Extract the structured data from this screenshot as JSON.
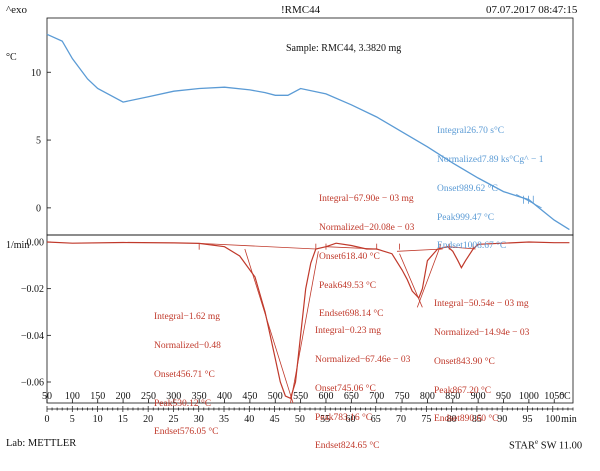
{
  "header": {
    "left": "^exo",
    "center": "!RMC44",
    "right": "07.07.2017 08:47:15"
  },
  "footer": {
    "lab": "Lab: METTLER",
    "software_prefix": "STAR",
    "software_sup": "e",
    "software_suffix": " SW 11.00"
  },
  "colors": {
    "blue": "#5b9bd5",
    "red": "#c0392b",
    "axis": "#111111"
  },
  "chart_data": [
    {
      "type": "line",
      "panel": "top",
      "subtitle": "Sample: RMC44, 3.3820 mg",
      "y_unit": "°C",
      "yticks": [
        "10",
        "5",
        "0"
      ],
      "ylim": [
        -2,
        14
      ],
      "x": [
        50,
        80,
        100,
        130,
        150,
        200,
        250,
        300,
        350,
        400,
        450,
        480,
        500,
        525,
        550,
        600,
        650,
        700,
        750,
        800,
        850,
        900,
        950,
        1000,
        1050,
        1080
      ],
      "y": [
        12.8,
        12.3,
        11.0,
        9.5,
        8.8,
        7.8,
        8.2,
        8.6,
        8.8,
        8.9,
        8.7,
        8.5,
        8.3,
        8.3,
        8.8,
        8.4,
        7.6,
        6.7,
        5.6,
        4.5,
        3.3,
        2.2,
        1.2,
        0.6,
        -0.9,
        -1.6
      ],
      "annotation": {
        "integral": "26.70 s°C",
        "normalized": "7.89 ks°Cg^ − 1",
        "onset": "989.62 °C",
        "peak": "999.47 °C",
        "endset": "1008.67 °C"
      }
    },
    {
      "type": "line",
      "panel": "bottom",
      "y_unit": "1/min",
      "yticks": [
        "0.00",
        "−0.02",
        "−0.04",
        "−0.06"
      ],
      "ylim": [
        -0.069,
        0.003
      ],
      "x": [
        50,
        100,
        200,
        300,
        350,
        400,
        430,
        460,
        480,
        500,
        510,
        520,
        530,
        540,
        550,
        560,
        570,
        580,
        600,
        620,
        650,
        680,
        700,
        730,
        750,
        760,
        770,
        783,
        790,
        800,
        820,
        840,
        850,
        860,
        867,
        875,
        890,
        900,
        950,
        1000,
        1050,
        1080
      ],
      "y": [
        0.0,
        -0.0005,
        -0.0002,
        -0.0004,
        -0.0006,
        -0.002,
        -0.006,
        -0.015,
        -0.03,
        -0.05,
        -0.06,
        -0.066,
        -0.067,
        -0.06,
        -0.04,
        -0.02,
        -0.009,
        -0.003,
        -0.002,
        -0.0005,
        -0.0015,
        -0.003,
        -0.003,
        -0.005,
        -0.012,
        -0.016,
        -0.021,
        -0.024,
        -0.02,
        -0.008,
        -0.003,
        -0.002,
        -0.004,
        -0.008,
        -0.011,
        -0.008,
        -0.003,
        -0.001,
        -0.0005,
        0.0,
        -0.0003,
        -0.0003
      ],
      "annotations": [
        {
          "integral": "−1.62 mg",
          "normalized": "−0.48",
          "onset": "456.71 °C",
          "peak": "530.12 °C",
          "endset": "576.05 °C"
        },
        {
          "integral": "−67.90e − 03 mg",
          "normalized": "−20.08e − 03",
          "onset": "618.40 °C",
          "peak": "649.53 °C",
          "endset": "698.14 °C"
        },
        {
          "integral": "−0.23 mg",
          "normalized": "−67.46e − 03",
          "onset": "745.06 °C",
          "peak": "783.16 °C",
          "endset": "824.65 °C"
        },
        {
          "integral": "−50.54e − 03 mg",
          "normalized": "−14.94e − 03",
          "onset": "843.90 °C",
          "peak": "867.20 °C",
          "endset": "890.60 °C"
        }
      ]
    }
  ],
  "x_axis": {
    "temp_labels": [
      "50",
      "100",
      "150",
      "200",
      "250",
      "300",
      "350",
      "400",
      "450",
      "500",
      "550",
      "600",
      "650",
      "700",
      "750",
      "800",
      "850",
      "900",
      "950",
      "1000",
      "1050"
    ],
    "temp_unit": "°C",
    "time_labels": [
      "0",
      "5",
      "10",
      "15",
      "20",
      "25",
      "30",
      "35",
      "40",
      "45",
      "50",
      "55",
      "60",
      "65",
      "70",
      "75",
      "80",
      "85",
      "90",
      "95",
      "100"
    ],
    "time_unit": "min"
  },
  "labels": {
    "integral": "Integral",
    "normalized": "Normalized",
    "onset": "Onset",
    "peak": "Peak",
    "endset": "Endset"
  }
}
